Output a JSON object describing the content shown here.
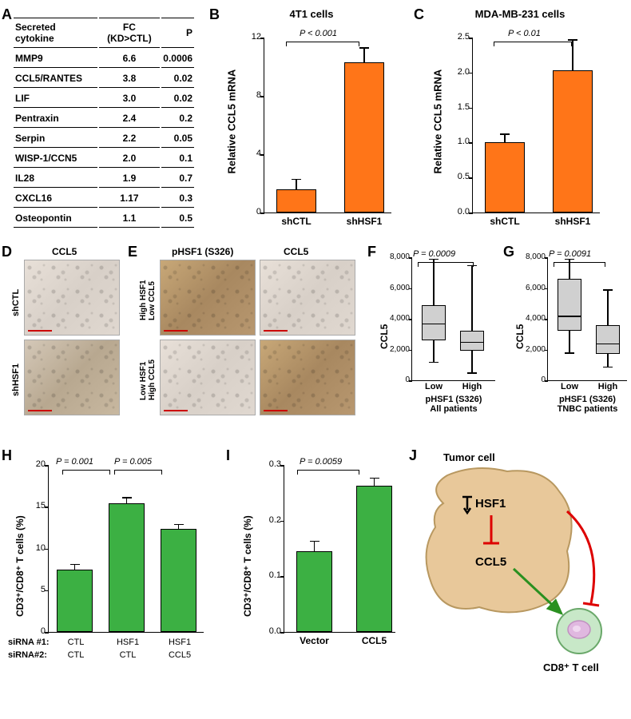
{
  "colors": {
    "bar_orange": "#ff7518",
    "bar_green": "#3cb043",
    "box_gray": "#c8c8c8",
    "tumor_fill": "#e8c89a",
    "tumor_stroke": "#b89860",
    "tcell_fill": "#b8e8b8",
    "tcell_nucleus": "#d8a8d8"
  },
  "panelA": {
    "headers": [
      "Secreted cytokine",
      "FC (KD>CTL)",
      "P"
    ],
    "rows": [
      [
        "MMP9",
        "6.6",
        "0.0006"
      ],
      [
        "CCL5/RANTES",
        "3.8",
        "0.02"
      ],
      [
        "LIF",
        "3.0",
        "0.02"
      ],
      [
        "Pentraxin",
        "2.4",
        "0.2"
      ],
      [
        "Serpin",
        "2.2",
        "0.05"
      ],
      [
        "WISP-1/CCN5",
        "2.0",
        "0.1"
      ],
      [
        "IL28",
        "1.9",
        "0.7"
      ],
      [
        "CXCL16",
        "1.17",
        "0.3"
      ],
      [
        "Osteopontin",
        "1.1",
        "0.5"
      ]
    ]
  },
  "panelB": {
    "title": "4T1 cells",
    "ylabel": "Relative CCL5 mRNA",
    "ymax": 12,
    "ytick": 4,
    "bars": [
      {
        "label": "shCTL",
        "value": 1.6,
        "error": 0.7
      },
      {
        "label": "shHSF1",
        "value": 10.3,
        "error": 1.0
      }
    ],
    "pval": "P < 0.001"
  },
  "panelC": {
    "title": "MDA-MB-231 cells",
    "ylabel": "Relative CCL5 mRNA",
    "ymax": 2.5,
    "ytick": 0.5,
    "bars": [
      {
        "label": "shCTL",
        "value": 1.0,
        "error": 0.12
      },
      {
        "label": "shHSF1",
        "value": 2.03,
        "error": 0.44
      }
    ],
    "pval": "P < 0.01"
  },
  "panelD": {
    "title": "CCL5",
    "rows": [
      "shCTL",
      "shHSF1"
    ]
  },
  "panelE": {
    "cols": [
      "pHSF1 (S326)",
      "CCL5"
    ],
    "rows": [
      "High HSF1\nLow CCL5",
      "Low HSF1\nHigh CCL5"
    ]
  },
  "panelF": {
    "ylabel": "CCL5",
    "ymax": 8000,
    "ytick": 2000,
    "groups": [
      "Low",
      "High"
    ],
    "xlabel": "pHSF1 (S326)\nAll patients",
    "pval": "P = 0.0009",
    "boxes": [
      {
        "min": 1200,
        "q1": 2600,
        "median": 3700,
        "q3": 4900,
        "max": 7900
      },
      {
        "min": 500,
        "q1": 1900,
        "median": 2500,
        "q3": 3200,
        "max": 7500
      }
    ]
  },
  "panelG": {
    "ylabel": "CCL5",
    "ymax": 8000,
    "ytick": 2000,
    "groups": [
      "Low",
      "High"
    ],
    "xlabel": "pHSF1 (S326)\nTNBC patients",
    "pval": "P = 0.0091",
    "boxes": [
      {
        "min": 1800,
        "q1": 3200,
        "median": 4200,
        "q3": 6600,
        "max": 7900
      },
      {
        "min": 900,
        "q1": 1700,
        "median": 2400,
        "q3": 3600,
        "max": 5900
      }
    ]
  },
  "panelH": {
    "ylabel": "CD3⁺/CD8⁺ T cells (%)",
    "ymax": 20,
    "ytick": 5,
    "bars": [
      {
        "value": 7.5,
        "error": 0.6
      },
      {
        "value": 15.4,
        "error": 0.7
      },
      {
        "value": 12.3,
        "error": 0.6
      }
    ],
    "pvals": [
      "P = 0.001",
      "P = 0.005"
    ],
    "xlabels": {
      "row1label": "siRNA #1:",
      "row2label": "siRNA#2:",
      "cols": [
        [
          "CTL",
          "CTL"
        ],
        [
          "HSF1",
          "CTL"
        ],
        [
          "HSF1",
          "CCL5"
        ]
      ]
    }
  },
  "panelI": {
    "ylabel": "CD3⁺/CD8⁺ T cells (%)",
    "ymax": 0.3,
    "ytick": 0.1,
    "bars": [
      {
        "label": "Vector",
        "value": 0.145,
        "error": 0.018
      },
      {
        "label": "CCL5",
        "value": 0.262,
        "error": 0.015
      }
    ],
    "pval": "P = 0.0059"
  },
  "panelJ": {
    "title": "Tumor cell",
    "hsf1": "HSF1",
    "ccl5": "CCL5",
    "tcell": "CD8⁺ T cell"
  }
}
